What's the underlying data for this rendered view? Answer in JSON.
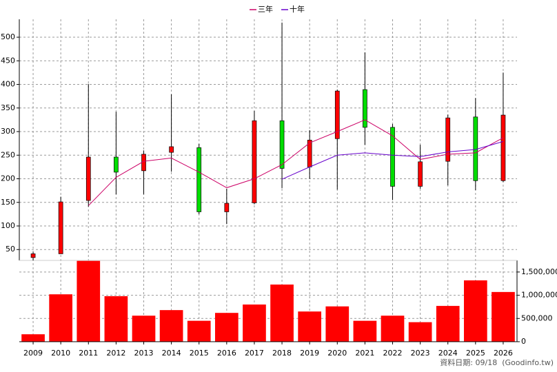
{
  "chart_data": {
    "type": "candlestick",
    "categories": [
      "2009",
      "2010",
      "2011",
      "2012",
      "2013",
      "2014",
      "2015",
      "2016",
      "2017",
      "2018",
      "2019",
      "2020",
      "2021",
      "2022",
      "2023",
      "2024",
      "2025",
      "2026"
    ],
    "open": [
      33,
      41,
      154,
      246,
      217,
      256,
      266,
      130,
      149,
      323,
      225,
      285,
      389,
      309,
      184,
      237,
      331,
      196
    ],
    "high": [
      45,
      162,
      401,
      342,
      260,
      379,
      274,
      179,
      344,
      531,
      303,
      389,
      468,
      316,
      272,
      336,
      371,
      425
    ],
    "low": [
      27,
      41,
      141,
      167,
      167,
      215,
      125,
      104,
      146,
      180,
      200,
      177,
      272,
      155,
      179,
      186,
      176,
      193
    ],
    "close": [
      41,
      151,
      246,
      214,
      252,
      268,
      130,
      148,
      323,
      222,
      282,
      386,
      309,
      184,
      236,
      329,
      196,
      335
    ],
    "up_color": "#ff0000",
    "down_color": "#00dd00",
    "series": [
      {
        "name": "三年",
        "color": "#cc0066",
        "values": [
          null,
          null,
          143,
          203,
          237,
          244,
          214,
          181,
          200,
          230,
          276,
          300,
          325,
          291,
          241,
          252,
          255,
          287
        ]
      },
      {
        "name": "十年",
        "color": "#6600cc",
        "values": [
          null,
          null,
          null,
          null,
          null,
          null,
          null,
          null,
          null,
          199,
          225,
          250,
          255,
          250,
          247,
          257,
          262,
          279
        ]
      }
    ],
    "ylim": [
      27,
      538
    ],
    "yticks": [
      50,
      100,
      150,
      200,
      250,
      300,
      350,
      400,
      450,
      500
    ],
    "volume": {
      "type": "bar",
      "color": "#ff0000",
      "values": [
        160000,
        1020000,
        1740000,
        980000,
        560000,
        680000,
        450000,
        620000,
        800000,
        1230000,
        650000,
        760000,
        450000,
        560000,
        420000,
        770000,
        1320000,
        1070000
      ],
      "y2lim": [
        0,
        1750000
      ],
      "y2ticks": [
        0,
        {
          "value": 500000,
          "label": "500,000"
        },
        {
          "value": 1000000,
          "label": "1,000,000"
        },
        {
          "value": 1500000,
          "label": "1,500,000"
        }
      ]
    },
    "grid": true,
    "legend": "top",
    "footer": "資料日期: 09/18  (Goodinfo.tw)"
  }
}
